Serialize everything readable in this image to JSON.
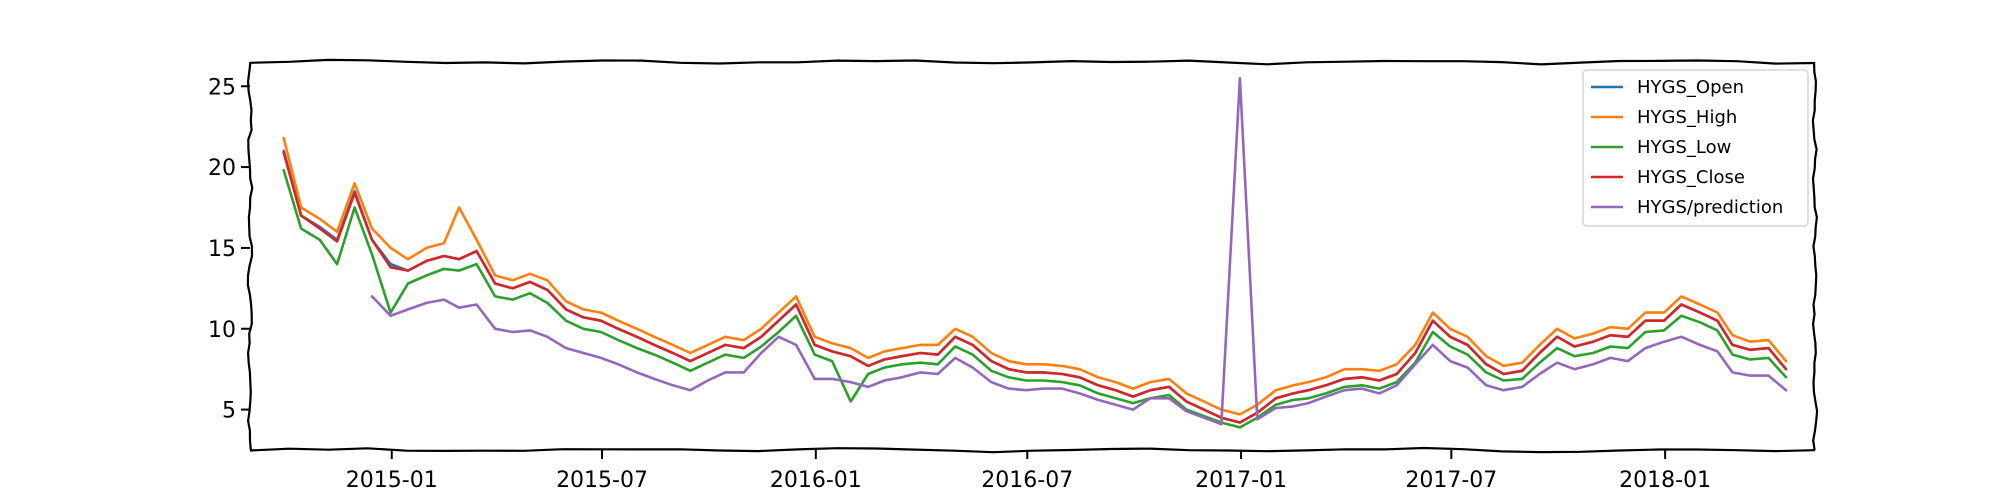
{
  "chart_data": {
    "type": "line",
    "title": "",
    "xlabel": "",
    "ylabel": "",
    "x_range": [
      "2014-09-01",
      "2018-05-10"
    ],
    "ylim": [
      2.5,
      26.5
    ],
    "x_ticks": [
      {
        "date": "2015-01-01",
        "label": "2015-01"
      },
      {
        "date": "2015-07-01",
        "label": "2015-07"
      },
      {
        "date": "2016-01-01",
        "label": "2016-01"
      },
      {
        "date": "2016-07-01",
        "label": "2016-07"
      },
      {
        "date": "2017-01-01",
        "label": "2017-01"
      },
      {
        "date": "2017-07-01",
        "label": "2017-07"
      },
      {
        "date": "2018-01-01",
        "label": "2018-01"
      }
    ],
    "y_ticks": [
      5,
      10,
      15,
      20,
      25
    ],
    "grid": false,
    "legend_position": "top-right",
    "style": "xkcd",
    "dates": [
      "2014-09-30",
      "2014-10-15",
      "2014-10-31",
      "2014-11-15",
      "2014-11-30",
      "2014-12-15",
      "2014-12-31",
      "2015-01-15",
      "2015-01-31",
      "2015-02-15",
      "2015-02-28",
      "2015-03-15",
      "2015-03-31",
      "2015-04-15",
      "2015-04-30",
      "2015-05-15",
      "2015-05-31",
      "2015-06-15",
      "2015-06-30",
      "2015-07-15",
      "2015-07-31",
      "2015-08-15",
      "2015-08-31",
      "2015-09-15",
      "2015-09-30",
      "2015-10-15",
      "2015-10-31",
      "2015-11-15",
      "2015-11-30",
      "2015-12-15",
      "2015-12-31",
      "2016-01-15",
      "2016-01-31",
      "2016-02-15",
      "2016-02-29",
      "2016-03-15",
      "2016-03-31",
      "2016-04-15",
      "2016-04-30",
      "2016-05-15",
      "2016-05-31",
      "2016-06-15",
      "2016-06-30",
      "2016-07-15",
      "2016-07-31",
      "2016-08-15",
      "2016-08-31",
      "2016-09-15",
      "2016-09-30",
      "2016-10-15",
      "2016-10-31",
      "2016-11-15",
      "2016-11-30",
      "2016-12-15",
      "2016-12-31",
      "2017-01-15",
      "2017-01-31",
      "2017-02-15",
      "2017-02-28",
      "2017-03-15",
      "2017-03-31",
      "2017-04-15",
      "2017-04-30",
      "2017-05-15",
      "2017-05-31",
      "2017-06-15",
      "2017-06-30",
      "2017-07-15",
      "2017-07-31",
      "2017-08-15",
      "2017-08-31",
      "2017-09-15",
      "2017-09-30",
      "2017-10-15",
      "2017-10-31",
      "2017-11-15",
      "2017-11-30",
      "2017-12-15",
      "2017-12-31",
      "2018-01-15",
      "2018-01-31",
      "2018-02-15",
      "2018-02-28",
      "2018-03-15",
      "2018-03-31",
      "2018-04-15"
    ],
    "series": [
      {
        "name": "HYGS_Open",
        "color": "#1f77b4",
        "values": [
          21.0,
          17.0,
          16.3,
          15.5,
          18.5,
          15.5,
          14.0,
          13.6,
          14.2,
          14.5,
          14.3,
          14.8,
          12.8,
          12.5,
          12.9,
          12.4,
          11.2,
          10.7,
          10.5,
          10.0,
          9.5,
          9.0,
          8.5,
          8.0,
          8.5,
          9.0,
          8.8,
          9.5,
          10.5,
          11.5,
          9.0,
          8.6,
          8.3,
          7.7,
          8.1,
          8.3,
          8.5,
          8.4,
          9.5,
          9.0,
          8.0,
          7.5,
          7.3,
          7.3,
          7.2,
          7.0,
          6.5,
          6.2,
          5.8,
          6.2,
          6.4,
          5.5,
          5.0,
          4.5,
          4.2,
          4.8,
          5.7,
          6.0,
          6.2,
          6.5,
          6.9,
          7.0,
          6.8,
          7.2,
          8.5,
          10.5,
          9.5,
          9.0,
          7.8,
          7.2,
          7.4,
          8.5,
          9.5,
          8.9,
          9.2,
          9.6,
          9.5,
          10.5,
          10.5,
          11.5,
          11.0,
          10.5,
          9.0,
          8.7,
          8.8,
          7.5
        ]
      },
      {
        "name": "HYGS_High",
        "color": "#ff7f0e",
        "values": [
          21.8,
          17.5,
          16.8,
          16.0,
          19.0,
          16.2,
          15.0,
          14.3,
          15.0,
          15.3,
          17.5,
          15.5,
          13.3,
          13.0,
          13.4,
          13.0,
          11.7,
          11.2,
          11.0,
          10.5,
          10.0,
          9.5,
          9.0,
          8.5,
          9.0,
          9.5,
          9.3,
          10.0,
          11.0,
          12.0,
          9.5,
          9.1,
          8.8,
          8.2,
          8.6,
          8.8,
          9.0,
          9.0,
          10.0,
          9.5,
          8.5,
          8.0,
          7.8,
          7.8,
          7.7,
          7.5,
          7.0,
          6.7,
          6.3,
          6.7,
          6.9,
          6.0,
          5.5,
          5.0,
          4.7,
          5.3,
          6.2,
          6.5,
          6.7,
          7.0,
          7.5,
          7.5,
          7.4,
          7.8,
          9.0,
          11.0,
          10.0,
          9.5,
          8.3,
          7.7,
          7.9,
          9.0,
          10.0,
          9.4,
          9.7,
          10.1,
          10.0,
          11.0,
          11.0,
          12.0,
          11.5,
          11.0,
          9.6,
          9.2,
          9.3,
          8.0
        ]
      },
      {
        "name": "HYGS_Low",
        "color": "#2ca02c",
        "values": [
          19.8,
          16.2,
          15.5,
          14.0,
          17.5,
          14.6,
          11.0,
          12.8,
          13.3,
          13.7,
          13.6,
          14.0,
          12.0,
          11.8,
          12.2,
          11.6,
          10.5,
          10.0,
          9.8,
          9.3,
          8.8,
          8.4,
          7.9,
          7.4,
          7.9,
          8.4,
          8.2,
          8.9,
          9.8,
          10.8,
          8.4,
          8.0,
          5.5,
          7.2,
          7.6,
          7.8,
          7.9,
          7.8,
          8.9,
          8.4,
          7.4,
          7.0,
          6.8,
          6.8,
          6.7,
          6.5,
          6.0,
          5.7,
          5.4,
          5.7,
          5.9,
          5.0,
          4.6,
          4.2,
          3.9,
          4.5,
          5.3,
          5.6,
          5.7,
          6.0,
          6.4,
          6.5,
          6.3,
          6.7,
          7.9,
          9.8,
          8.9,
          8.4,
          7.3,
          6.8,
          6.9,
          7.9,
          8.8,
          8.3,
          8.5,
          8.9,
          8.8,
          9.8,
          9.9,
          10.8,
          10.4,
          9.9,
          8.4,
          8.1,
          8.2,
          7.0
        ]
      },
      {
        "name": "HYGS_Close",
        "color": "#d62728",
        "values": [
          20.9,
          17.0,
          16.2,
          15.4,
          18.4,
          15.5,
          13.8,
          13.6,
          14.2,
          14.5,
          14.3,
          14.8,
          12.8,
          12.5,
          12.9,
          12.4,
          11.2,
          10.7,
          10.5,
          10.0,
          9.5,
          9.0,
          8.5,
          8.0,
          8.5,
          9.0,
          8.8,
          9.5,
          10.5,
          11.5,
          9.0,
          8.6,
          8.3,
          7.7,
          8.1,
          8.3,
          8.5,
          8.4,
          9.5,
          9.0,
          8.0,
          7.5,
          7.3,
          7.3,
          7.2,
          7.0,
          6.5,
          6.2,
          5.8,
          6.2,
          6.4,
          5.5,
          5.0,
          4.5,
          4.2,
          4.8,
          5.7,
          6.0,
          6.2,
          6.5,
          6.9,
          7.0,
          6.8,
          7.2,
          8.5,
          10.5,
          9.5,
          9.0,
          7.8,
          7.2,
          7.4,
          8.5,
          9.5,
          8.9,
          9.2,
          9.6,
          9.5,
          10.5,
          10.5,
          11.5,
          11.0,
          10.5,
          9.0,
          8.7,
          8.8,
          7.5
        ]
      },
      {
        "name": "HYGS/prediction",
        "color": "#9467bd",
        "values": [
          null,
          null,
          null,
          null,
          null,
          12.0,
          10.8,
          11.2,
          11.6,
          11.8,
          11.3,
          11.5,
          10.0,
          9.8,
          9.9,
          9.5,
          8.8,
          8.5,
          8.2,
          7.8,
          7.3,
          6.9,
          6.5,
          6.2,
          6.8,
          7.3,
          7.3,
          8.5,
          9.5,
          9.0,
          6.9,
          6.9,
          6.7,
          6.4,
          6.8,
          7.0,
          7.3,
          7.2,
          8.2,
          7.6,
          6.7,
          6.3,
          6.2,
          6.3,
          6.3,
          6.0,
          5.6,
          5.3,
          5.0,
          5.7,
          5.7,
          4.9,
          4.5,
          4.1,
          25.5,
          4.4,
          5.1,
          5.2,
          5.4,
          5.8,
          6.2,
          6.3,
          6.0,
          6.5,
          7.8,
          9.0,
          8.0,
          7.6,
          6.5,
          6.2,
          6.4,
          7.2,
          7.9,
          7.5,
          7.8,
          8.2,
          8.0,
          8.8,
          9.2,
          9.5,
          9.0,
          8.6,
          7.3,
          7.1,
          7.1,
          6.2
        ]
      }
    ]
  }
}
